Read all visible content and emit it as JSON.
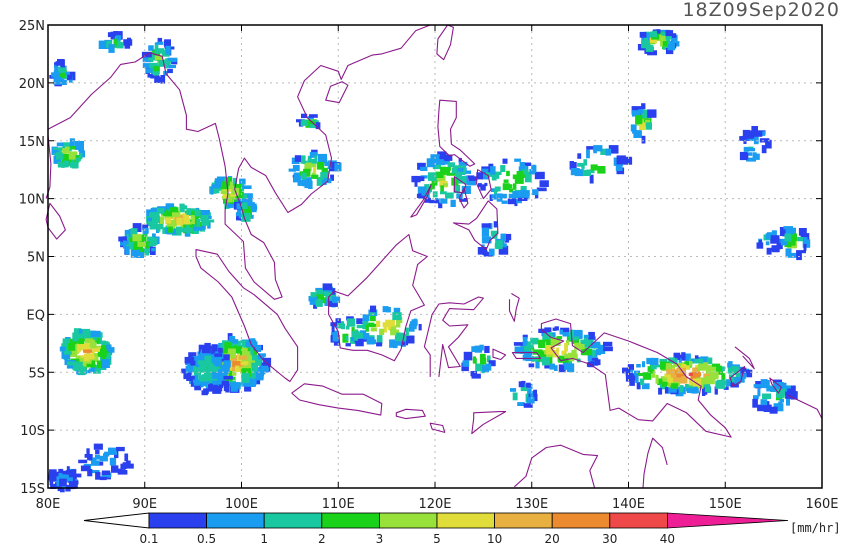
{
  "timestamp": "18Z09Sep2020",
  "colors": {
    "coastline": "#8b1a8b",
    "frame": "#000000",
    "grid": "#bbbbbb"
  },
  "map": {
    "lon_range": [
      80,
      160
    ],
    "lat_range": [
      -15,
      25
    ],
    "lat_ticks": [
      {
        "value": 25,
        "label": "25N"
      },
      {
        "value": 20,
        "label": "20N"
      },
      {
        "value": 15,
        "label": "15N"
      },
      {
        "value": 10,
        "label": "10N"
      },
      {
        "value": 5,
        "label": "5N"
      },
      {
        "value": 0,
        "label": "EQ"
      },
      {
        "value": -5,
        "label": "5S"
      },
      {
        "value": -10,
        "label": "10S"
      },
      {
        "value": -15,
        "label": "15S"
      }
    ],
    "lon_ticks": [
      {
        "value": 80,
        "label": "80E"
      },
      {
        "value": 90,
        "label": "90E"
      },
      {
        "value": 100,
        "label": "100E"
      },
      {
        "value": 110,
        "label": "110E"
      },
      {
        "value": 120,
        "label": "120E"
      },
      {
        "value": 130,
        "label": "130E"
      },
      {
        "value": 140,
        "label": "140E"
      },
      {
        "value": 150,
        "label": "150E"
      },
      {
        "value": 160,
        "label": "160E"
      }
    ]
  },
  "colorbar": {
    "units": "[mm/hr]",
    "thresholds": [
      "0.1",
      "0.5",
      "1",
      "2",
      "3",
      "5",
      "10",
      "20",
      "30",
      "40"
    ],
    "under_color": "#ffffff",
    "colors": [
      "#2a40ee",
      "#1a9cf0",
      "#19c8a0",
      "#1ad21a",
      "#98e03a",
      "#e0dc3a",
      "#e8b040",
      "#ec8a30",
      "#ee4848",
      "#ee1e96"
    ]
  }
}
